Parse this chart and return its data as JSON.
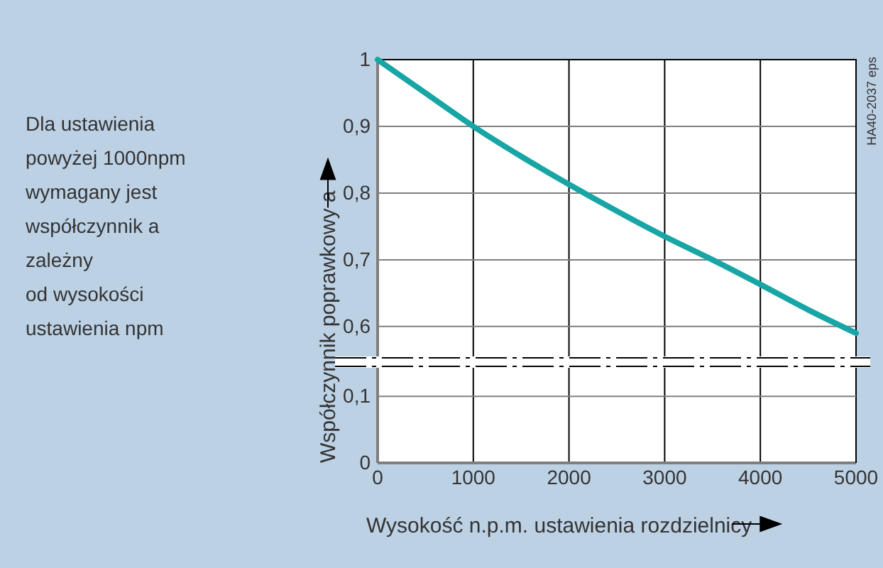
{
  "chart_data": [
    {
      "type": "line",
      "ylabel": "Współczynnik poprawkowy a",
      "x": [
        0,
        500,
        1000,
        1500,
        2000,
        2500,
        3000,
        3500,
        4000,
        4500,
        5000
      ],
      "series": [
        {
          "color": "#17a5a5",
          "values": [
            1,
            0.95,
            0.9,
            0.855,
            0.813,
            0.773,
            0.735,
            0.7,
            0.663,
            0.625,
            0.59
          ]
        }
      ],
      "xlim": [
        0,
        5000
      ],
      "xticks": [
        0,
        1000,
        2000,
        3000,
        4000,
        5000
      ],
      "ylim": [
        0.553,
        1
      ],
      "yticks": [
        {
          "value": 0.6,
          "label": "0,6"
        },
        {
          "value": 0.7,
          "label": "0,7"
        },
        {
          "value": 0.8,
          "label": "0,8"
        },
        {
          "value": 0.9,
          "label": "0,9"
        },
        1
      ],
      "tick_labels": "y",
      "grid": true,
      "marker": "none",
      "line_style": "solid",
      "annotations": [
        "Dla ustawienia\npowyżej 1000npm\nwymagany jest\nwspółczynnik a\nzależny\nod wysokości\nustawienia npm",
        "HA40-2037 eps"
      ]
    },
    {
      "type": "line",
      "xlabel": "Wysokość n.p.m. ustawienia rozdzielnicy",
      "xlim": [
        0,
        5000
      ],
      "xticks": [
        0,
        1000,
        2000,
        3000,
        4000,
        5000
      ],
      "ylim": [
        0,
        0.145
      ],
      "yticks": [
        0,
        {
          "value": 0.1,
          "label": "0,1"
        }
      ],
      "grid": "x",
      "ref_lines": [
        {
          "axis": "y",
          "value": 0.1,
          "color": "#7f7f7f"
        }
      ]
    }
  ]
}
